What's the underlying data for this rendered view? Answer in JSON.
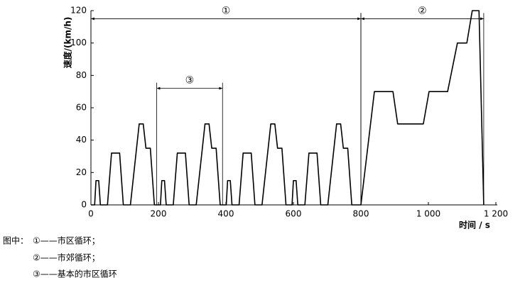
{
  "chart_data": {
    "type": "line",
    "xlabel": "时间 / s",
    "ylabel": "速度/(km/h)",
    "x": [
      0,
      11,
      15,
      23,
      28,
      49,
      61,
      85,
      96,
      117,
      143,
      155,
      163,
      176,
      188,
      195,
      206,
      210,
      218,
      223,
      244,
      256,
      280,
      291,
      312,
      338,
      350,
      358,
      371,
      383,
      390,
      401,
      405,
      413,
      418,
      439,
      451,
      475,
      486,
      507,
      533,
      545,
      553,
      566,
      578,
      585,
      596,
      600,
      608,
      613,
      634,
      646,
      670,
      681,
      702,
      728,
      740,
      748,
      761,
      773,
      780,
      800,
      840,
      895,
      909,
      985,
      1002,
      1057,
      1086,
      1114,
      1130,
      1150,
      1164
    ],
    "series": [
      {
        "color": "#000000",
        "values": [
          0,
          0,
          15,
          15,
          0,
          0,
          32,
          32,
          0,
          0,
          50,
          50,
          35,
          35,
          0,
          0,
          0,
          15,
          15,
          0,
          0,
          32,
          32,
          0,
          0,
          50,
          50,
          35,
          35,
          0,
          0,
          0,
          15,
          15,
          0,
          0,
          32,
          32,
          0,
          0,
          50,
          50,
          35,
          35,
          0,
          0,
          0,
          15,
          15,
          0,
          0,
          32,
          32,
          0,
          0,
          50,
          50,
          35,
          35,
          0,
          0,
          0,
          70,
          70,
          50,
          50,
          70,
          70,
          100,
          100,
          120,
          120,
          0
        ]
      }
    ],
    "xlim": [
      0,
      1200
    ],
    "ylim": [
      0,
      120
    ],
    "xticks": [
      0,
      200,
      400,
      600,
      800,
      {
        "value": 1000,
        "label": "1 000"
      },
      {
        "value": 1200,
        "label": "1 200"
      }
    ],
    "yticks": [
      0,
      20,
      40,
      60,
      80,
      100,
      120
    ],
    "annotations": [
      {
        "label": "①",
        "x": [
          0,
          800
        ],
        "y": 115
      },
      {
        "label": "②",
        "x": [
          800,
          1164
        ],
        "y": 115
      },
      {
        "label": "③",
        "x": [
          195,
          390
        ],
        "y": 72
      }
    ],
    "caption": {
      "prefix": "图中：",
      "items": [
        "①——市区循环；",
        "②——市郊循环；",
        "③——基本的市区循环"
      ]
    }
  }
}
